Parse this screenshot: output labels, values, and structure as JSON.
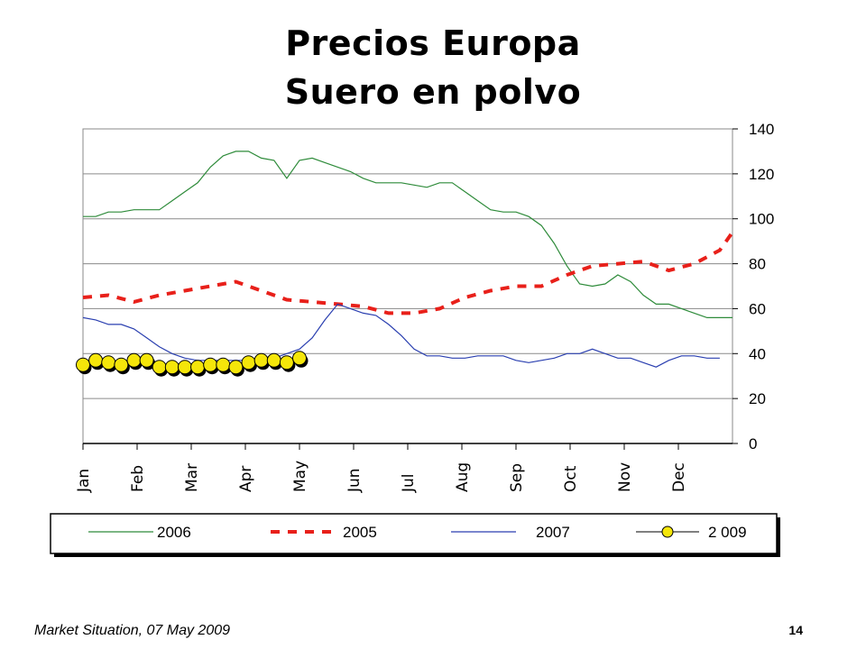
{
  "title_line1": "Precios Europa",
  "title_line2": "Suero en polvo",
  "footer_left": "Market Situation, 07 May 2009",
  "page_number": "14",
  "chart_data": {
    "type": "line",
    "title": "Precios Europa Suero en polvo",
    "xlabel": "",
    "ylabel": "",
    "categories": [
      "Jan",
      "Feb",
      "Mar",
      "Apr",
      "May",
      "Jun",
      "Jul",
      "Aug",
      "Sep",
      "Oct",
      "Nov",
      "Dec"
    ],
    "x_range": [
      0,
      51
    ],
    "ylim": [
      0,
      140
    ],
    "yticks": [
      0,
      20,
      40,
      60,
      80,
      100,
      120,
      140
    ],
    "y_axis_side": "right",
    "grid": "horizontal",
    "legend_position": "bottom",
    "series": [
      {
        "name": "2006",
        "color": "#2e8b3a",
        "style": "solid",
        "x": [
          0,
          1,
          2,
          3,
          4,
          5,
          6,
          7,
          8,
          9,
          10,
          11,
          12,
          13,
          14,
          15,
          16,
          17,
          18,
          19,
          20,
          21,
          22,
          23,
          24,
          25,
          26,
          27,
          28,
          29,
          30,
          31,
          32,
          33,
          34,
          35,
          36,
          37,
          38,
          39,
          40,
          41,
          42,
          43,
          44,
          45,
          46,
          47,
          48,
          49,
          50,
          51
        ],
        "values": [
          101,
          101,
          103,
          103,
          104,
          104,
          104,
          108,
          112,
          116,
          123,
          128,
          130,
          130,
          127,
          126,
          118,
          126,
          127,
          125,
          123,
          121,
          118,
          116,
          116,
          116,
          115,
          114,
          116,
          116,
          112,
          108,
          104,
          103,
          103,
          101,
          97,
          89,
          79,
          71,
          70,
          71,
          75,
          72,
          66,
          62,
          62,
          60,
          58,
          56,
          56,
          56
        ]
      },
      {
        "name": "2005",
        "color": "#e8201a",
        "style": "dashed",
        "x": [
          0,
          2,
          4,
          6,
          8,
          10,
          12,
          14,
          16,
          18,
          20,
          22,
          24,
          26,
          28,
          30,
          32,
          34,
          36,
          38,
          40,
          42,
          44,
          46,
          48,
          50,
          51
        ],
        "values": [
          65,
          66,
          63,
          66,
          68,
          70,
          72,
          68,
          64,
          63,
          62,
          61,
          58,
          58,
          60,
          65,
          68,
          70,
          70,
          75,
          79,
          80,
          81,
          77,
          80,
          86,
          94
        ]
      },
      {
        "name": "2007",
        "color": "#2a3fb0",
        "style": "solid",
        "x": [
          0,
          1,
          2,
          3,
          4,
          5,
          6,
          7,
          8,
          9,
          10,
          11,
          12,
          13,
          14,
          15,
          16,
          17,
          18,
          19,
          20,
          21,
          22,
          23,
          24,
          25,
          26,
          27,
          28,
          29,
          30,
          31,
          32,
          33,
          34,
          35,
          36,
          37,
          38,
          39,
          40,
          41,
          42,
          43,
          44,
          45,
          46,
          47,
          48,
          49,
          50
        ],
        "values": [
          56,
          55,
          53,
          53,
          51,
          47,
          43,
          40,
          38,
          37,
          37,
          37,
          37,
          37,
          37,
          38,
          40,
          42,
          47,
          55,
          62,
          60,
          58,
          57,
          53,
          48,
          42,
          39,
          39,
          38,
          38,
          39,
          39,
          39,
          37,
          36,
          37,
          38,
          40,
          40,
          42,
          40,
          38,
          38,
          36,
          34,
          37,
          39,
          39,
          38,
          38
        ]
      },
      {
        "name": "2 009",
        "color": "#f5e60a",
        "style": "markers",
        "x": [
          0,
          1,
          2,
          3,
          4,
          5,
          6,
          7,
          8,
          9,
          10,
          11,
          12,
          13,
          14,
          15,
          16,
          17
        ],
        "values": [
          35,
          37,
          36,
          35,
          37,
          37,
          34,
          34,
          34,
          34,
          35,
          35,
          34,
          36,
          37,
          37,
          36,
          38
        ]
      }
    ]
  }
}
